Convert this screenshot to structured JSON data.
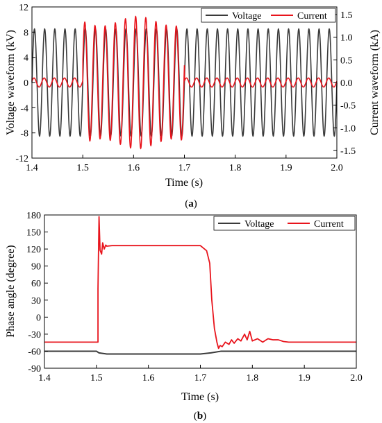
{
  "chart_data": [
    {
      "panel_label": "a",
      "type": "line",
      "xlabel": "Time (s)",
      "ylabel": "Voltage waveform (kV)",
      "y2label": "Current waveform (kA)",
      "xlim": [
        1.4,
        2.0
      ],
      "ylim": [
        -12,
        12
      ],
      "y2lim": [
        -1.667,
        1.667
      ],
      "xticks": [
        1.4,
        1.5,
        1.6,
        1.7,
        1.8,
        1.9,
        2.0
      ],
      "yticks": [
        -12,
        -8,
        -4,
        0,
        4,
        8,
        12
      ],
      "y2ticks": [
        -1.5,
        -1.0,
        -0.5,
        0.0,
        0.5,
        1.0,
        1.5
      ],
      "grid": false,
      "legend_position": "top-right",
      "series": [
        {
          "name": "Voltage",
          "color": "#3a3a3a",
          "axis": "left",
          "frequency_hz": 50,
          "amplitude_kv": 8.5
        },
        {
          "name": "Current",
          "color": "#e8141c",
          "axis": "right",
          "frequency_hz": 50,
          "segments": [
            {
              "t_start": 1.4,
              "t_end": 1.5,
              "amplitude_ka": 0.1
            },
            {
              "t_start": 1.5,
              "t_end": 1.7,
              "amplitude_ka": 1.35
            },
            {
              "t_start": 1.7,
              "t_end": 2.0,
              "amplitude_ka": 0.1
            }
          ]
        }
      ]
    },
    {
      "panel_label": "b",
      "type": "line",
      "xlabel": "Time (s)",
      "ylabel": "Phase angle (degree)",
      "xlim": [
        1.4,
        2.0
      ],
      "ylim": [
        -90,
        180
      ],
      "xticks": [
        1.4,
        1.5,
        1.6,
        1.7,
        1.8,
        1.9,
        2.0
      ],
      "yticks": [
        -90,
        -60,
        -30,
        0,
        30,
        60,
        90,
        120,
        150,
        180
      ],
      "grid": false,
      "legend_position": "top-right",
      "series": [
        {
          "name": "Voltage",
          "color": "#3a3a3a",
          "x": [
            1.4,
            1.5,
            1.505,
            1.52,
            1.6,
            1.7,
            1.72,
            1.74,
            1.8,
            2.0
          ],
          "values": [
            -60,
            -60,
            -63,
            -65,
            -65,
            -65,
            -63,
            -60,
            -60,
            -60
          ]
        },
        {
          "name": "Current",
          "color": "#e8141c",
          "x": [
            1.4,
            1.503,
            1.503,
            1.505,
            1.507,
            1.51,
            1.512,
            1.515,
            1.518,
            1.52,
            1.53,
            1.6,
            1.7,
            1.712,
            1.718,
            1.722,
            1.727,
            1.732,
            1.735,
            1.738,
            1.742,
            1.748,
            1.755,
            1.76,
            1.765,
            1.772,
            1.778,
            1.785,
            1.79,
            1.795,
            1.8,
            1.81,
            1.82,
            1.83,
            1.84,
            1.85,
            1.86,
            1.87,
            2.0
          ],
          "values": [
            -44,
            -44,
            50,
            177,
            118,
            111,
            131,
            120,
            127,
            125,
            126,
            126,
            126,
            117,
            95,
            30,
            -20,
            -45,
            -55,
            -50,
            -52,
            -44,
            -48,
            -40,
            -46,
            -38,
            -42,
            -30,
            -40,
            -25,
            -42,
            -38,
            -44,
            -38,
            -40,
            -40,
            -43,
            -44,
            -44
          ]
        }
      ]
    }
  ]
}
